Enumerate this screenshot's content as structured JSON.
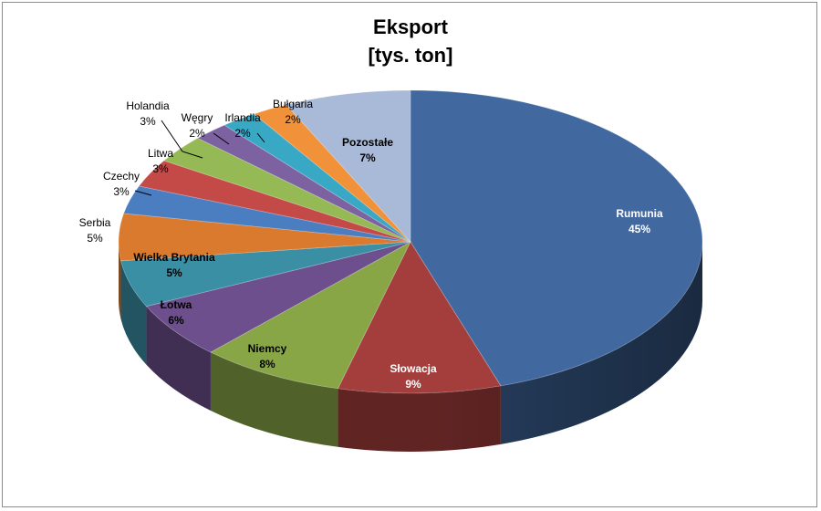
{
  "chart_data": {
    "type": "pie",
    "title_line1": "Eksport",
    "title_line2": "[tys. ton]",
    "slices": [
      {
        "label": "Rumunia",
        "percent_text": "45%",
        "value": 45,
        "color": "#4169a0"
      },
      {
        "label": "Słowacja",
        "percent_text": "9%",
        "value": 9,
        "color": "#a33e3c"
      },
      {
        "label": "Niemcy",
        "percent_text": "8%",
        "value": 8,
        "color": "#88a646"
      },
      {
        "label": "Łotwa",
        "percent_text": "6%",
        "value": 6,
        "color": "#6c4f8c"
      },
      {
        "label": "Wielka Brytania",
        "percent_text": "5%",
        "value": 5,
        "color": "#3a8fa4"
      },
      {
        "label": "Serbia",
        "percent_text": "5%",
        "value": 5,
        "color": "#da7a2e"
      },
      {
        "label": "Czechy",
        "percent_text": "3%",
        "value": 3,
        "color": "#4a7ec0"
      },
      {
        "label": "Litwa",
        "percent_text": "3%",
        "value": 3,
        "color": "#c44a48"
      },
      {
        "label": "Holandia",
        "percent_text": "3%",
        "value": 3,
        "color": "#94b955"
      },
      {
        "label": "Węgry",
        "percent_text": "2%",
        "value": 2,
        "color": "#7c62a0"
      },
      {
        "label": "Irlandia",
        "percent_text": "2%",
        "value": 2,
        "color": "#38a8c4"
      },
      {
        "label": "Bułgaria",
        "percent_text": "2%",
        "value": 2,
        "color": "#f1913a"
      },
      {
        "label": "Pozostałe",
        "percent_text": "7%",
        "value": 7,
        "color": "#a9b9d8"
      }
    ]
  }
}
